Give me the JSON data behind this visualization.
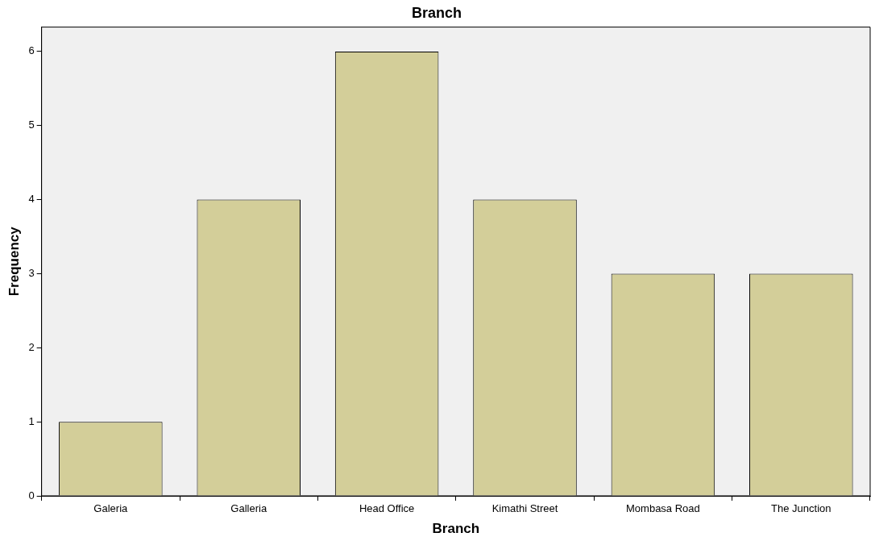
{
  "chart_data": {
    "type": "bar",
    "title": "Branch",
    "xlabel": "Branch",
    "ylabel": "Frequency",
    "categories": [
      "Galeria",
      "Galleria",
      "Head Office",
      "Kimathi Street",
      "Mombasa Road",
      "The Junction"
    ],
    "values": [
      1,
      4,
      6,
      4,
      3,
      3
    ],
    "color": "#d3ce99",
    "ylim": [
      0,
      6.33
    ],
    "yticks": [
      0,
      1,
      2,
      3,
      4,
      5,
      6
    ],
    "grid": false,
    "legend": false
  }
}
